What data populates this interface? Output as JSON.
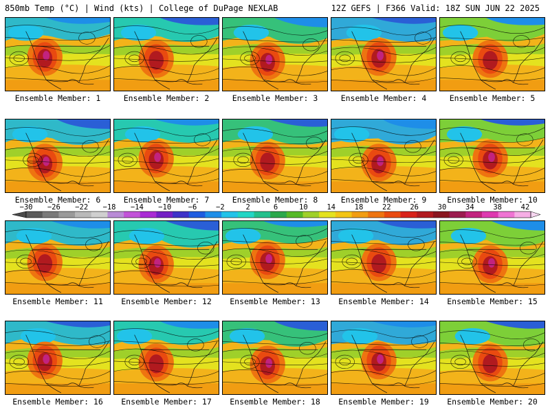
{
  "header": {
    "left": "850mb Temp (°C) | Wind (kts) | College of DuPage NEXLAB",
    "right": "12Z GEFS | F366 Valid: 18Z SUN JUN 22 2025"
  },
  "colorbar": {
    "tick_labels": [
      "−30",
      "−26",
      "−22",
      "−18",
      "−14",
      "−10",
      "−6",
      "−2",
      "2",
      "6",
      "10",
      "14",
      "18",
      "22",
      "26",
      "30",
      "34",
      "38",
      "42"
    ],
    "colors": [
      "#5a5a5a",
      "#7a7a7a",
      "#9a9a9a",
      "#b9b9b9",
      "#cfcfcf",
      "#b98bd6",
      "#c253d8",
      "#a92bd4",
      "#7320c5",
      "#3d32c8",
      "#1e5ce0",
      "#1e8ee8",
      "#22c3e9",
      "#22d6c5",
      "#23c08c",
      "#2ba84b",
      "#55b927",
      "#9fd02a",
      "#e4e21f",
      "#f3c515",
      "#f19d12",
      "#ee7410",
      "#e94a10",
      "#d8221a",
      "#b11a1f",
      "#8a1620",
      "#9b1c4f",
      "#c2237f",
      "#de3ab0",
      "#ef74d3",
      "#f6aee5"
    ]
  },
  "members": [
    {
      "caption": "Ensemble Member: 1"
    },
    {
      "caption": "Ensemble Member: 2"
    },
    {
      "caption": "Ensemble Member: 3"
    },
    {
      "caption": "Ensemble Member: 4"
    },
    {
      "caption": "Ensemble Member: 5"
    },
    {
      "caption": "Ensemble Member: 6"
    },
    {
      "caption": "Ensemble Member: 7"
    },
    {
      "caption": "Ensemble Member: 8"
    },
    {
      "caption": "Ensemble Member: 9"
    },
    {
      "caption": "Ensemble Member: 10"
    },
    {
      "caption": "Ensemble Member: 11"
    },
    {
      "caption": "Ensemble Member: 12"
    },
    {
      "caption": "Ensemble Member: 13"
    },
    {
      "caption": "Ensemble Member: 14"
    },
    {
      "caption": "Ensemble Member: 15"
    },
    {
      "caption": "Ensemble Member: 16"
    },
    {
      "caption": "Ensemble Member: 17"
    },
    {
      "caption": "Ensemble Member: 18"
    },
    {
      "caption": "Ensemble Member: 19"
    },
    {
      "caption": "Ensemble Member: 20"
    }
  ]
}
